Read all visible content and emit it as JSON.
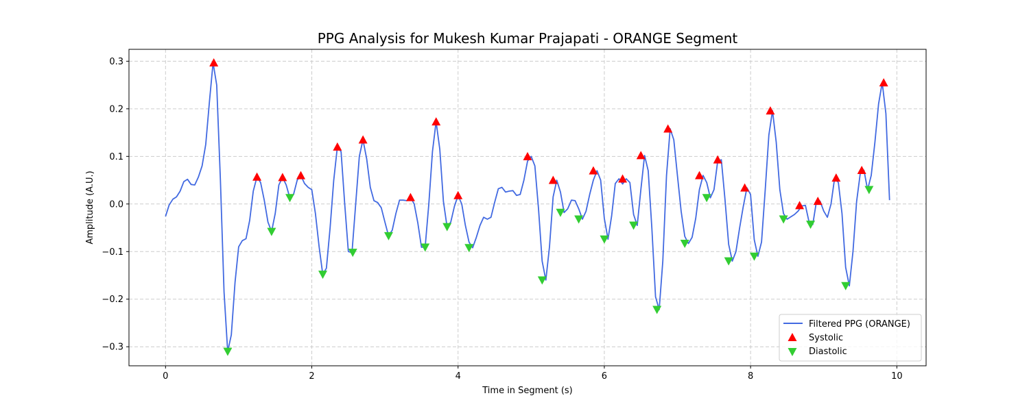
{
  "chart_data": {
    "type": "line",
    "title": "PPG Analysis for Mukesh Kumar Prajapati - ORANGE Segment",
    "xlabel": "Time in Segment (s)",
    "ylabel": "Amplitude (A.U.)",
    "xlim": [
      -0.5,
      10.4
    ],
    "ylim": [
      -0.34,
      0.325
    ],
    "xticks": [
      0,
      2,
      4,
      6,
      8,
      10
    ],
    "xtick_labels": [
      "0",
      "2",
      "4",
      "6",
      "8",
      "10"
    ],
    "yticks": [
      -0.3,
      -0.2,
      -0.1,
      0.0,
      0.1,
      0.2,
      0.3
    ],
    "ytick_labels": [
      "−0.3",
      "−0.2",
      "−0.1",
      "0.0",
      "0.1",
      "0.2",
      "0.3"
    ],
    "grid": true,
    "legend_position": "lower-right",
    "colors": {
      "line": "#4169e1",
      "systolic": "#ff0000",
      "diastolic": "#32cd32",
      "grid": "#cccccc"
    },
    "series": [
      {
        "name": "Filtered PPG (ORANGE)",
        "kind": "line",
        "x": [
          0.0,
          0.05,
          0.1,
          0.15,
          0.2,
          0.25,
          0.3,
          0.35,
          0.4,
          0.45,
          0.5,
          0.55,
          0.6,
          0.65,
          0.7,
          0.75,
          0.8,
          0.85,
          0.9,
          0.95,
          1.0,
          1.05,
          1.1,
          1.15,
          1.2,
          1.25,
          1.3,
          1.35,
          1.4,
          1.45,
          1.5,
          1.55,
          1.6,
          1.65,
          1.7,
          1.75,
          1.8,
          1.85,
          1.9,
          1.95,
          2.0,
          2.05,
          2.1,
          2.15,
          2.2,
          2.25,
          2.3,
          2.35,
          2.4,
          2.45,
          2.5,
          2.55,
          2.6,
          2.65,
          2.7,
          2.75,
          2.8,
          2.85,
          2.9,
          2.95,
          3.0,
          3.05,
          3.1,
          3.15,
          3.2,
          3.25,
          3.3,
          3.35,
          3.4,
          3.45,
          3.5,
          3.55,
          3.6,
          3.65,
          3.7,
          3.75,
          3.8,
          3.85,
          3.9,
          3.95,
          4.0,
          4.05,
          4.1,
          4.15,
          4.2,
          4.25,
          4.3,
          4.35,
          4.4,
          4.45,
          4.5,
          4.55,
          4.6,
          4.65,
          4.7,
          4.75,
          4.8,
          4.85,
          4.9,
          4.95,
          5.0,
          5.05,
          5.1,
          5.15,
          5.2,
          5.25,
          5.3,
          5.35,
          5.4,
          5.45,
          5.5,
          5.55,
          5.6,
          5.65,
          5.7,
          5.75,
          5.8,
          5.85,
          5.9,
          5.95,
          6.0,
          6.05,
          6.1,
          6.15,
          6.2,
          6.25,
          6.3,
          6.35,
          6.4,
          6.45,
          6.5,
          6.55,
          6.6,
          6.65,
          6.7,
          6.75,
          6.8,
          6.85,
          6.9,
          6.95,
          7.0,
          7.05,
          7.1,
          7.15,
          7.2,
          7.25,
          7.3,
          7.35,
          7.4,
          7.45,
          7.5,
          7.55,
          7.6,
          7.65,
          7.7,
          7.75,
          7.8,
          7.85,
          7.9,
          7.95,
          8.0,
          8.05,
          8.1,
          8.15,
          8.2,
          8.25,
          8.3,
          8.35,
          8.4,
          8.45,
          8.5,
          8.55,
          8.6,
          8.65,
          8.7,
          8.75,
          8.8,
          8.85,
          8.9,
          8.95,
          9.0,
          9.05,
          9.1,
          9.15,
          9.2,
          9.25,
          9.3,
          9.35,
          9.4,
          9.45,
          9.5,
          9.55,
          9.6,
          9.65,
          9.7,
          9.75,
          9.8,
          9.85,
          9.9
        ],
        "y": [
          -0.026,
          -0.002,
          0.01,
          0.015,
          0.027,
          0.047,
          0.052,
          0.041,
          0.04,
          0.057,
          0.08,
          0.125,
          0.215,
          0.297,
          0.25,
          0.05,
          -0.185,
          -0.31,
          -0.275,
          -0.165,
          -0.09,
          -0.077,
          -0.073,
          -0.035,
          0.027,
          0.057,
          0.045,
          0.008,
          -0.038,
          -0.058,
          -0.02,
          0.04,
          0.056,
          0.04,
          0.013,
          0.02,
          0.05,
          0.06,
          0.043,
          0.035,
          0.03,
          -0.02,
          -0.09,
          -0.148,
          -0.135,
          -0.05,
          0.05,
          0.12,
          0.11,
          0.0,
          -0.1,
          -0.102,
          0.0,
          0.1,
          0.135,
          0.095,
          0.035,
          0.007,
          0.003,
          -0.008,
          -0.038,
          -0.067,
          -0.055,
          -0.02,
          0.008,
          0.008,
          0.007,
          0.014,
          0.0,
          -0.04,
          -0.091,
          -0.09,
          0.0,
          0.11,
          0.173,
          0.115,
          0.005,
          -0.048,
          -0.038,
          -0.005,
          0.018,
          0.0,
          -0.045,
          -0.08,
          -0.092,
          -0.07,
          -0.045,
          -0.028,
          -0.032,
          -0.028,
          0.003,
          0.032,
          0.035,
          0.025,
          0.027,
          0.028,
          0.018,
          0.02,
          0.05,
          0.09,
          0.1,
          0.08,
          -0.01,
          -0.12,
          -0.16,
          -0.09,
          0.015,
          0.05,
          0.025,
          -0.018,
          -0.01,
          0.008,
          0.007,
          -0.01,
          -0.032,
          -0.015,
          0.02,
          0.05,
          0.07,
          0.05,
          -0.03,
          -0.074,
          -0.025,
          0.043,
          0.053,
          0.042,
          0.053,
          0.045,
          -0.022,
          -0.045,
          0.03,
          0.102,
          0.07,
          -0.05,
          -0.195,
          -0.222,
          -0.12,
          0.06,
          0.158,
          0.135,
          0.06,
          -0.015,
          -0.068,
          -0.083,
          -0.07,
          -0.03,
          0.03,
          0.06,
          0.045,
          0.013,
          0.03,
          0.09,
          0.093,
          0.01,
          -0.085,
          -0.12,
          -0.1,
          -0.05,
          -0.005,
          0.034,
          0.02,
          -0.075,
          -0.11,
          -0.08,
          0.03,
          0.145,
          0.196,
          0.13,
          0.03,
          -0.02,
          -0.032,
          -0.027,
          -0.022,
          -0.015,
          -0.004,
          -0.003,
          -0.038,
          -0.043,
          0.005,
          0.006,
          -0.015,
          -0.028,
          0.0,
          0.055,
          0.045,
          -0.02,
          -0.133,
          -0.172,
          -0.1,
          0.005,
          0.065,
          0.071,
          0.03,
          0.06,
          0.13,
          0.21,
          0.255,
          0.19,
          0.008
        ]
      },
      {
        "name": "Systolic",
        "kind": "marker-up",
        "x": [
          0.66,
          1.25,
          1.6,
          1.85,
          2.35,
          2.7,
          3.35,
          3.7,
          4.0,
          4.95,
          5.3,
          5.85,
          6.25,
          6.5,
          6.87,
          7.3,
          7.55,
          7.92,
          8.27,
          8.67,
          8.92,
          9.17,
          9.52,
          9.82
        ],
        "y": [
          0.297,
          0.057,
          0.056,
          0.06,
          0.12,
          0.135,
          0.014,
          0.173,
          0.018,
          0.1,
          0.05,
          0.07,
          0.053,
          0.102,
          0.158,
          0.06,
          0.093,
          0.034,
          0.196,
          -0.003,
          0.006,
          0.055,
          0.071,
          0.255
        ]
      },
      {
        "name": "Diastolic",
        "kind": "marker-down",
        "x": [
          0.85,
          1.45,
          1.7,
          2.15,
          2.56,
          3.05,
          3.55,
          3.85,
          4.15,
          5.15,
          5.4,
          5.65,
          6.0,
          6.4,
          6.72,
          7.1,
          7.4,
          7.7,
          8.05,
          8.45,
          8.82,
          9.3,
          9.62
        ],
        "y": [
          -0.31,
          -0.058,
          0.013,
          -0.148,
          -0.102,
          -0.067,
          -0.091,
          -0.048,
          -0.092,
          -0.16,
          -0.018,
          -0.032,
          -0.074,
          -0.045,
          -0.222,
          -0.083,
          0.013,
          -0.12,
          -0.11,
          -0.032,
          -0.043,
          -0.172,
          0.03
        ]
      }
    ],
    "legend": {
      "line": "Filtered PPG (ORANGE)",
      "systolic": "Systolic",
      "diastolic": "Diastolic"
    }
  }
}
